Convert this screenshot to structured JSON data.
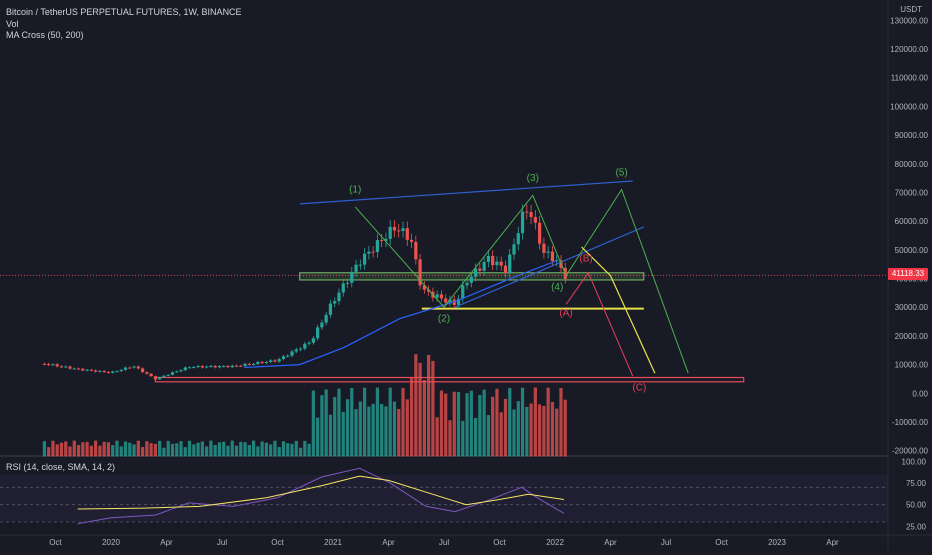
{
  "legend": {
    "title": "Bitcoin / TetherUS PERPETUAL FUTURES, 1W, BINANCE",
    "vol": "Vol",
    "ma": "MA Cross (50, 200)",
    "rsi": "RSI (14, close, SMA, 14, 2)"
  },
  "price_axis": {
    "unit": "USDT",
    "ticks": [
      "130000.00",
      "120000.00",
      "110000.00",
      "100000.00",
      "90000.00",
      "80000.00",
      "70000.00",
      "60000.00",
      "50000.00",
      "40000.00",
      "30000.00",
      "20000.00",
      "10000.00",
      "0.00",
      "-10000.00",
      "-20000.00"
    ],
    "current_price": "41118.33"
  },
  "rsi_axis": {
    "ticks": [
      "100.00",
      "75.00",
      "50.00",
      "25.00"
    ]
  },
  "time_axis": {
    "ticks": [
      "Oct",
      "2020",
      "Apr",
      "Jul",
      "Oct",
      "2021",
      "Apr",
      "Jul",
      "Oct",
      "2022",
      "Apr",
      "Jul",
      "Oct",
      "2023",
      "Apr"
    ]
  },
  "wave_labels": {
    "w1": "(1)",
    "w2": "(2)",
    "w3": "(3)",
    "w4": "(4)",
    "w5": "(5)",
    "wa": "(A)",
    "wb": "(B)",
    "wc": "(C)"
  },
  "colors": {
    "background": "#181b25",
    "up": "#26a69a",
    "down": "#ef5350",
    "ma_line": "#2962ff",
    "rsi_line": "#7e57c2",
    "rsi_ma": "#f5e663",
    "channel": "#2f5fd0",
    "support_green": "#7cc46b",
    "support_yellow": "#e8e24a",
    "bottom_red": "#e84b5a",
    "wave_green": "#4caf50",
    "wave_red": "#e83e5a"
  },
  "chart_data": {
    "type": "candlestick",
    "symbol": "BTCUSDT perpetual, weekly",
    "price_range": [
      -25000,
      135000
    ],
    "rsi_range": [
      15,
      105
    ],
    "close_path": [
      [
        2019.7,
        10300
      ],
      [
        2019.85,
        8400
      ],
      [
        2020.0,
        7200
      ],
      [
        2020.1,
        9500
      ],
      [
        2020.2,
        5000
      ],
      [
        2020.35,
        9200
      ],
      [
        2020.55,
        9400
      ],
      [
        2020.75,
        11500
      ],
      [
        2020.9,
        18000
      ],
      [
        2021.0,
        32000
      ],
      [
        2021.12,
        46000
      ],
      [
        2021.28,
        58000
      ],
      [
        2021.35,
        54000
      ],
      [
        2021.4,
        36000
      ],
      [
        2021.55,
        31000
      ],
      [
        2021.6,
        39000
      ],
      [
        2021.7,
        47000
      ],
      [
        2021.78,
        43000
      ],
      [
        2021.85,
        61000
      ],
      [
        2021.88,
        65000
      ],
      [
        2021.95,
        49000
      ],
      [
        2022.0,
        47000
      ],
      [
        2022.04,
        41118
      ]
    ],
    "rsi_path": [
      [
        2019.85,
        28
      ],
      [
        2020.0,
        35
      ],
      [
        2020.2,
        38
      ],
      [
        2020.35,
        52
      ],
      [
        2020.55,
        48
      ],
      [
        2020.75,
        58
      ],
      [
        2020.95,
        82
      ],
      [
        2021.12,
        92
      ],
      [
        2021.25,
        76
      ],
      [
        2021.42,
        48
      ],
      [
        2021.55,
        42
      ],
      [
        2021.7,
        55
      ],
      [
        2021.85,
        70
      ],
      [
        2021.92,
        58
      ],
      [
        2022.04,
        40
      ]
    ],
    "rsi_ma_path": [
      [
        2019.85,
        45
      ],
      [
        2020.15,
        46
      ],
      [
        2020.4,
        48
      ],
      [
        2020.7,
        58
      ],
      [
        2020.95,
        72
      ],
      [
        2021.12,
        83
      ],
      [
        2021.25,
        78
      ],
      [
        2021.45,
        62
      ],
      [
        2021.6,
        50
      ],
      [
        2021.75,
        56
      ],
      [
        2021.88,
        62
      ],
      [
        2022.04,
        56
      ]
    ],
    "ma_path": [
      [
        2020.6,
        9000
      ],
      [
        2020.85,
        10000
      ],
      [
        2021.05,
        16000
      ],
      [
        2021.3,
        26000
      ],
      [
        2021.55,
        32000
      ],
      [
        2021.8,
        40000
      ],
      [
        2022.0,
        46000
      ]
    ],
    "annotations": {
      "upper_channel": [
        [
          2020.85,
          66000
        ],
        [
          2022.35,
          74000
        ]
      ],
      "lower_channel": [
        [
          2021.55,
          30000
        ],
        [
          2022.4,
          58000
        ]
      ],
      "green_zone": [
        [
          2020.85,
          2022.4
        ],
        [
          39500,
          42000
        ]
      ],
      "yellow_line": [
        [
          2021.4,
          2022.4
        ],
        29500
      ],
      "red_zone": [
        [
          2020.2,
          2022.85
        ],
        [
          4000,
          5500
        ]
      ],
      "wave_path": [
        [
          2021.1,
          65000
        ],
        [
          2021.5,
          30000
        ],
        [
          2021.9,
          69000
        ],
        [
          2022.05,
          41000
        ],
        [
          2022.3,
          71000
        ],
        [
          2022.6,
          7000
        ]
      ],
      "yellow_arrow": [
        [
          2022.12,
          51000
        ],
        [
          2022.25,
          41000
        ],
        [
          2022.45,
          7000
        ]
      ],
      "red_arrow": [
        [
          2022.05,
          31000
        ],
        [
          2022.15,
          42000
        ],
        [
          2022.35,
          6000
        ]
      ]
    }
  }
}
